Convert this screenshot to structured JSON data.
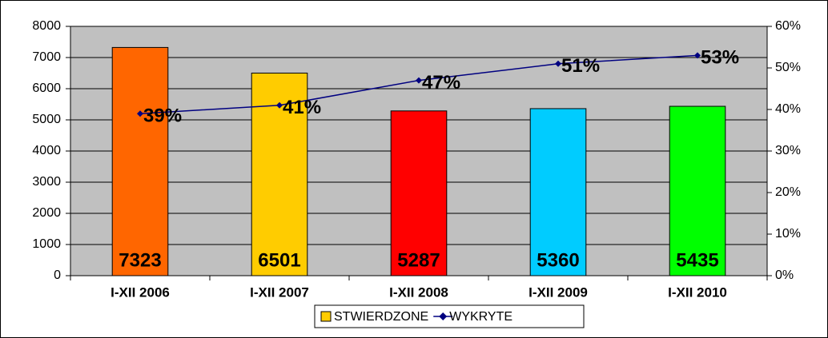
{
  "chart_data": {
    "type": "bar",
    "categories": [
      "I-XII 2006",
      "I-XII 2007",
      "I-XII 2008",
      "I-XII 2009",
      "I-XII 2010"
    ],
    "series": [
      {
        "name": "STWIERDZONE",
        "color": "#FFCC00",
        "colors": [
          "#FF6600",
          "#FFCC00",
          "#FF0000",
          "#00CCFF",
          "#00FF00"
        ],
        "values": [
          7323,
          6501,
          5287,
          5360,
          5435
        ]
      },
      {
        "name": "WYKRYTE",
        "type": "line",
        "axis": "y2",
        "color": "#000080",
        "values": [
          39,
          41,
          47,
          51,
          53
        ],
        "value_labels": [
          "39%",
          "41%",
          "47%",
          "51%",
          "53%"
        ]
      }
    ],
    "ylim": [
      0,
      8000
    ],
    "yticks": [
      0,
      1000,
      2000,
      3000,
      4000,
      5000,
      6000,
      7000,
      8000
    ],
    "y2lim": [
      0,
      60
    ],
    "y2ticks": [
      {
        "value": 0,
        "label": "0%"
      },
      {
        "value": 10,
        "label": "10%"
      },
      {
        "value": 20,
        "label": "20%"
      },
      {
        "value": 30,
        "label": "30%"
      },
      {
        "value": 40,
        "label": "40%"
      },
      {
        "value": 50,
        "label": "50%"
      },
      {
        "value": 60,
        "label": "60%"
      }
    ],
    "grid": true,
    "legend": "bottom"
  }
}
